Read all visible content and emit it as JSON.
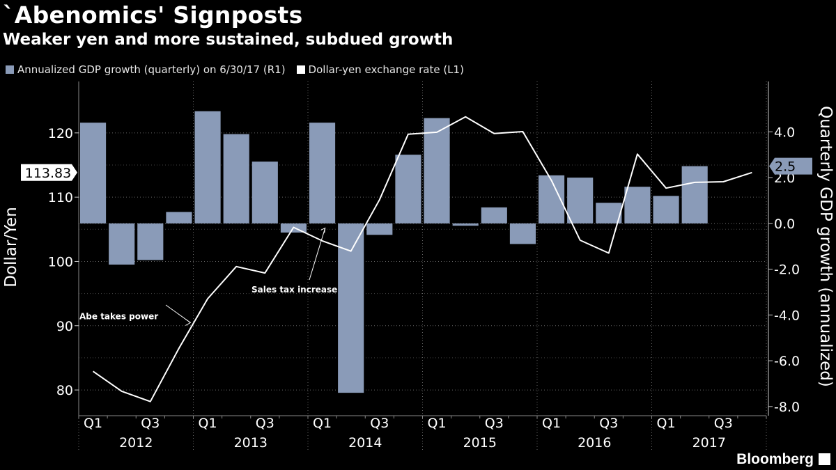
{
  "header": {
    "title": "`Abenomics' Signposts",
    "subtitle": "Weaker yen and more sustained, subdued growth"
  },
  "legend": [
    {
      "label": "Annualized GDP growth (quarterly) on 6/30/17 (R1)",
      "color": "#8a9bb8"
    },
    {
      "label": "Dollar-yen exchange rate (L1)",
      "color": "#ffffff"
    }
  ],
  "source": "Bloomberg",
  "chart_data": {
    "type": "bar",
    "categories": [
      "2012Q1",
      "2012Q2",
      "2012Q3",
      "2012Q4",
      "2013Q1",
      "2013Q2",
      "2013Q3",
      "2013Q4",
      "2014Q1",
      "2014Q2",
      "2014Q3",
      "2014Q4",
      "2015Q1",
      "2015Q2",
      "2015Q3",
      "2015Q4",
      "2016Q1",
      "2016Q2",
      "2016Q3",
      "2016Q4",
      "2017Q1",
      "2017Q2"
    ],
    "x_tick_labels": [
      "Q1",
      "Q3",
      "Q1",
      "Q3",
      "Q1",
      "Q3",
      "Q1",
      "Q3",
      "Q1",
      "Q3",
      "Q1",
      "Q3"
    ],
    "years": [
      "2012",
      "2013",
      "2014",
      "2015",
      "2016",
      "2017"
    ],
    "series": [
      {
        "name": "Annualized GDP growth (quarterly) on 6/30/17",
        "axis": "right",
        "type": "bar",
        "color": "#8a9bb8",
        "values": [
          4.4,
          -1.8,
          -1.6,
          0.5,
          4.9,
          3.9,
          2.7,
          -0.4,
          4.4,
          -7.4,
          -0.5,
          3.0,
          4.6,
          -0.1,
          0.7,
          -0.9,
          2.1,
          2.0,
          0.9,
          1.6,
          1.2,
          2.5
        ]
      },
      {
        "name": "Dollar-yen exchange rate",
        "axis": "left",
        "type": "line",
        "color": "#ffffff",
        "x": [
          0.5,
          1.5,
          2.5,
          3.5,
          4.5,
          5.5,
          6.5,
          7.5,
          8.5,
          9.5,
          10.5,
          11.5,
          12.5,
          13.5,
          14.5,
          15.5,
          16.5,
          17.5,
          18.5,
          19.5,
          20.5,
          21.5,
          22.5,
          23.5
        ],
        "values": [
          82.9,
          79.8,
          78.2,
          86.5,
          94.2,
          99.2,
          98.2,
          105.3,
          103.2,
          101.6,
          109.6,
          119.8,
          120.1,
          122.5,
          119.9,
          120.2,
          112.6,
          103.3,
          101.3,
          116.7,
          111.4,
          112.3,
          112.4,
          113.83
        ]
      }
    ],
    "left_axis": {
      "label": "Dollar/Yen",
      "ticks": [
        "80",
        "90",
        "100",
        "110",
        "120"
      ],
      "ylim": [
        76,
        128
      ]
    },
    "right_axis": {
      "label": "Quarterly GDP growth (annualized)",
      "ticks": [
        "-8.0",
        "-6.0",
        "-4.0",
        "-2.0",
        "0.0",
        "2.0",
        "4.0"
      ],
      "ylim": [
        -8.4,
        6.2
      ]
    },
    "last_value_left": "113.83",
    "last_value_right": "2.5",
    "annotations": [
      {
        "text": "Abe takes power",
        "x": 3.9,
        "y": 90.8
      },
      {
        "text": "Sales tax increase",
        "x": 8.6,
        "y": 105.2
      }
    ]
  }
}
